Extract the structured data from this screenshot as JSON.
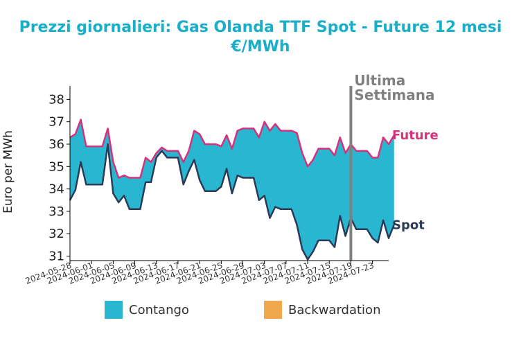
{
  "chart_data": {
    "type": "area",
    "title_line1": "Prezzi giornalieri: Gas Olanda TTF Spot - Future 12 mesi",
    "title_line2": "€/MWh",
    "xlabel": "",
    "ylabel": "Euro per MWh",
    "ylim": [
      30.8,
      38.6
    ],
    "yticks": [
      31,
      32,
      33,
      34,
      35,
      36,
      37,
      38
    ],
    "x_start": "2024-05-28",
    "x_end": "2024-07-26",
    "xticks": [
      "2024-05-28",
      "2024-06-01",
      "2024-06-05",
      "2024-06-09",
      "2024-06-13",
      "2024-06-17",
      "2024-06-21",
      "2024-06-25",
      "2024-06-29",
      "2024-07-03",
      "2024-07-07",
      "2024-07-11",
      "2024-07-15",
      "2024-07-19",
      "2024-07-23"
    ],
    "vline": {
      "date": "2024-07-19",
      "label_line1": "Ultima",
      "label_line2": "Settimana",
      "color": "#808080"
    },
    "fill_colors": {
      "contango": "#29b6d0",
      "backwardation": "#f0a84a"
    },
    "legend": {
      "contango": "Contango",
      "backwardation": "Backwardation"
    },
    "series": [
      {
        "name": "Future",
        "color": "#d6317a",
        "points": [
          [
            "2024-05-28",
            36.3
          ],
          [
            "2024-05-29",
            36.45
          ],
          [
            "2024-05-30",
            37.1
          ],
          [
            "2024-05-31",
            35.9
          ],
          [
            "2024-06-01",
            35.9
          ],
          [
            "2024-06-02",
            35.9
          ],
          [
            "2024-06-03",
            35.9
          ],
          [
            "2024-06-04",
            36.7
          ],
          [
            "2024-06-05",
            35.2
          ],
          [
            "2024-06-06",
            34.5
          ],
          [
            "2024-06-07",
            34.6
          ],
          [
            "2024-06-08",
            34.5
          ],
          [
            "2024-06-09",
            34.5
          ],
          [
            "2024-06-10",
            34.5
          ],
          [
            "2024-06-11",
            35.4
          ],
          [
            "2024-06-12",
            35.2
          ],
          [
            "2024-06-13",
            35.6
          ],
          [
            "2024-06-14",
            35.85
          ],
          [
            "2024-06-15",
            35.7
          ],
          [
            "2024-06-16",
            35.7
          ],
          [
            "2024-06-17",
            35.7
          ],
          [
            "2024-06-18",
            35.2
          ],
          [
            "2024-06-19",
            35.7
          ],
          [
            "2024-06-20",
            36.6
          ],
          [
            "2024-06-21",
            36.45
          ],
          [
            "2024-06-22",
            36.0
          ],
          [
            "2024-06-23",
            36.0
          ],
          [
            "2024-06-24",
            36.0
          ],
          [
            "2024-06-25",
            35.9
          ],
          [
            "2024-06-26",
            36.4
          ],
          [
            "2024-06-27",
            35.8
          ],
          [
            "2024-06-28",
            36.6
          ],
          [
            "2024-06-29",
            36.7
          ],
          [
            "2024-06-30",
            36.7
          ],
          [
            "2024-07-01",
            36.7
          ],
          [
            "2024-07-02",
            36.3
          ],
          [
            "2024-07-03",
            37.0
          ],
          [
            "2024-07-04",
            36.6
          ],
          [
            "2024-07-05",
            36.9
          ],
          [
            "2024-07-06",
            36.6
          ],
          [
            "2024-07-07",
            36.6
          ],
          [
            "2024-07-08",
            36.6
          ],
          [
            "2024-07-09",
            36.5
          ],
          [
            "2024-07-10",
            35.6
          ],
          [
            "2024-07-11",
            35.0
          ],
          [
            "2024-07-12",
            35.3
          ],
          [
            "2024-07-13",
            35.8
          ],
          [
            "2024-07-14",
            35.8
          ],
          [
            "2024-07-15",
            35.8
          ],
          [
            "2024-07-16",
            35.5
          ],
          [
            "2024-07-17",
            36.3
          ],
          [
            "2024-07-18",
            35.6
          ],
          [
            "2024-07-19",
            36.0
          ],
          [
            "2024-07-20",
            35.7
          ],
          [
            "2024-07-21",
            35.7
          ],
          [
            "2024-07-22",
            35.7
          ],
          [
            "2024-07-23",
            35.4
          ],
          [
            "2024-07-24",
            35.4
          ],
          [
            "2024-07-25",
            36.3
          ],
          [
            "2024-07-26",
            36.0
          ],
          [
            "2024-07-27",
            36.4
          ]
        ]
      },
      {
        "name": "Spot",
        "color": "#2b3a57",
        "points": [
          [
            "2024-05-28",
            33.5
          ],
          [
            "2024-05-29",
            33.95
          ],
          [
            "2024-05-30",
            35.2
          ],
          [
            "2024-05-31",
            34.2
          ],
          [
            "2024-06-01",
            34.2
          ],
          [
            "2024-06-02",
            34.2
          ],
          [
            "2024-06-03",
            34.2
          ],
          [
            "2024-06-04",
            36.0
          ],
          [
            "2024-06-05",
            33.8
          ],
          [
            "2024-06-06",
            33.4
          ],
          [
            "2024-06-07",
            33.7
          ],
          [
            "2024-06-08",
            33.1
          ],
          [
            "2024-06-09",
            33.1
          ],
          [
            "2024-06-10",
            33.1
          ],
          [
            "2024-06-11",
            34.3
          ],
          [
            "2024-06-12",
            34.3
          ],
          [
            "2024-06-13",
            35.4
          ],
          [
            "2024-06-14",
            35.7
          ],
          [
            "2024-06-15",
            35.4
          ],
          [
            "2024-06-16",
            35.4
          ],
          [
            "2024-06-17",
            35.4
          ],
          [
            "2024-06-18",
            34.2
          ],
          [
            "2024-06-19",
            34.8
          ],
          [
            "2024-06-20",
            35.3
          ],
          [
            "2024-06-21",
            34.4
          ],
          [
            "2024-06-22",
            33.9
          ],
          [
            "2024-06-23",
            33.9
          ],
          [
            "2024-06-24",
            33.9
          ],
          [
            "2024-06-25",
            34.1
          ],
          [
            "2024-06-26",
            34.9
          ],
          [
            "2024-06-27",
            33.8
          ],
          [
            "2024-06-28",
            34.6
          ],
          [
            "2024-06-29",
            34.5
          ],
          [
            "2024-06-30",
            34.5
          ],
          [
            "2024-07-01",
            34.5
          ],
          [
            "2024-07-02",
            33.5
          ],
          [
            "2024-07-03",
            33.7
          ],
          [
            "2024-07-04",
            32.7
          ],
          [
            "2024-07-05",
            33.2
          ],
          [
            "2024-07-06",
            33.1
          ],
          [
            "2024-07-07",
            33.1
          ],
          [
            "2024-07-08",
            33.1
          ],
          [
            "2024-07-09",
            32.4
          ],
          [
            "2024-07-10",
            31.3
          ],
          [
            "2024-07-11",
            30.85
          ],
          [
            "2024-07-12",
            31.2
          ],
          [
            "2024-07-13",
            31.7
          ],
          [
            "2024-07-14",
            31.7
          ],
          [
            "2024-07-15",
            31.7
          ],
          [
            "2024-07-16",
            31.4
          ],
          [
            "2024-07-17",
            32.8
          ],
          [
            "2024-07-18",
            31.9
          ],
          [
            "2024-07-19",
            32.7
          ],
          [
            "2024-07-20",
            32.2
          ],
          [
            "2024-07-21",
            32.2
          ],
          [
            "2024-07-22",
            32.2
          ],
          [
            "2024-07-23",
            31.8
          ],
          [
            "2024-07-24",
            31.6
          ],
          [
            "2024-07-25",
            32.6
          ],
          [
            "2024-07-26",
            31.8
          ],
          [
            "2024-07-27",
            32.4
          ]
        ]
      }
    ]
  }
}
